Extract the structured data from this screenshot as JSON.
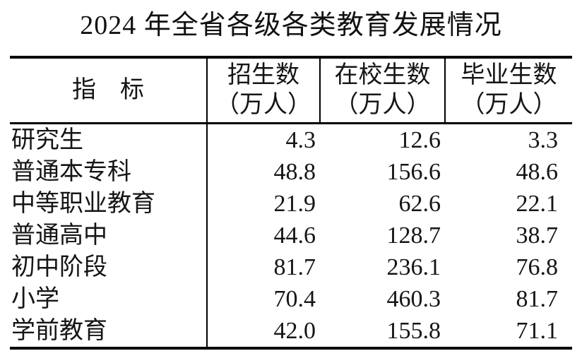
{
  "colors": {
    "background": "#ffffff",
    "text": "#111111",
    "border": "#000000"
  },
  "chart_data": {
    "type": "table",
    "title": "2024 年全省各级各类教育发展情况",
    "unit": "万人",
    "columns": [
      {
        "id": "indicator",
        "line1": "指　标",
        "line2": ""
      },
      {
        "id": "enrollment",
        "line1": "招生数",
        "line2": "（万人）"
      },
      {
        "id": "current_students",
        "line1": "在校生数",
        "line2": "（万人）"
      },
      {
        "id": "graduates",
        "line1": "毕业生数",
        "line2": "（万人）"
      }
    ],
    "rows": [
      {
        "indicator": "研究生",
        "enrollment": "4.3",
        "current_students": "12.6",
        "graduates": "3.3"
      },
      {
        "indicator": "普通本专科",
        "enrollment": "48.8",
        "current_students": "156.6",
        "graduates": "48.6"
      },
      {
        "indicator": "中等职业教育",
        "enrollment": "21.9",
        "current_students": "62.6",
        "graduates": "22.1"
      },
      {
        "indicator": "普通高中",
        "enrollment": "44.6",
        "current_students": "128.7",
        "graduates": "38.7"
      },
      {
        "indicator": "初中阶段",
        "enrollment": "81.7",
        "current_students": "236.1",
        "graduates": "76.8"
      },
      {
        "indicator": "小学",
        "enrollment": "70.4",
        "current_students": "460.3",
        "graduates": "81.7"
      },
      {
        "indicator": "学前教育",
        "enrollment": "42.0",
        "current_students": "155.8",
        "graduates": "71.1"
      }
    ]
  }
}
